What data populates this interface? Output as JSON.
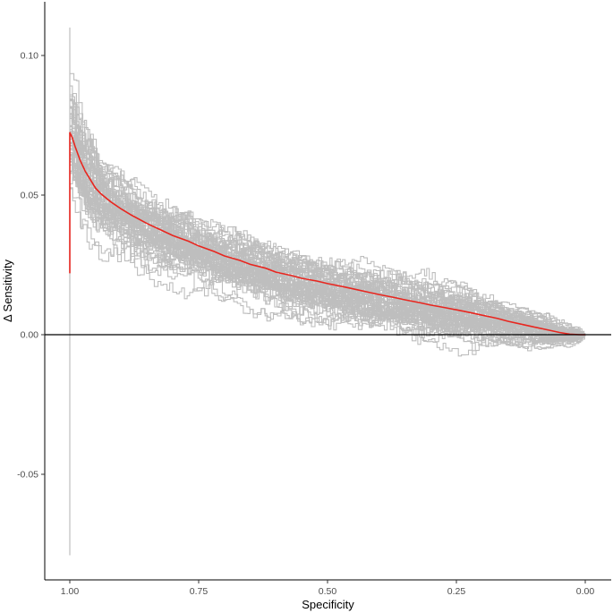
{
  "chart_data": {
    "type": "line",
    "title": "",
    "xlabel": "Specificity",
    "ylabel": "Δ Sensitivity",
    "x_reversed": true,
    "xlim": [
      0.0,
      1.0
    ],
    "ylim": [
      -0.085,
      0.118
    ],
    "x_ticks": [
      {
        "value": 1.0,
        "label": "1.00"
      },
      {
        "value": 0.75,
        "label": "0.75"
      },
      {
        "value": 0.5,
        "label": "0.50"
      },
      {
        "value": 0.25,
        "label": "0.25"
      },
      {
        "value": 0.0,
        "label": "0.00"
      }
    ],
    "y_ticks": [
      {
        "value": 0.1,
        "label": "0.10"
      },
      {
        "value": 0.05,
        "label": "0.05"
      },
      {
        "value": 0.0,
        "label": "0.00"
      },
      {
        "value": -0.05,
        "label": "-0.05"
      }
    ],
    "grid": false,
    "reference_line": {
      "y": 0.0,
      "color": "#000000"
    },
    "colors": {
      "mean": "#e8261f",
      "replicates": "#bebebe",
      "axis": "#000000"
    },
    "series": [
      {
        "role": "mean",
        "x": [
          1.0,
          1.0,
          0.995,
          0.99,
          0.98,
          0.97,
          0.96,
          0.95,
          0.94,
          0.92,
          0.9,
          0.88,
          0.85,
          0.82,
          0.8,
          0.77,
          0.75,
          0.72,
          0.7,
          0.67,
          0.65,
          0.62,
          0.6,
          0.57,
          0.55,
          0.52,
          0.5,
          0.47,
          0.45,
          0.42,
          0.4,
          0.37,
          0.35,
          0.32,
          0.3,
          0.27,
          0.25,
          0.22,
          0.2,
          0.17,
          0.15,
          0.12,
          0.1,
          0.07,
          0.05,
          0.03,
          0.01,
          0.0
        ],
        "y": [
          0.022,
          0.0725,
          0.0705,
          0.0675,
          0.0625,
          0.0585,
          0.0555,
          0.0525,
          0.0505,
          0.0475,
          0.045,
          0.0428,
          0.0398,
          0.0372,
          0.0355,
          0.0335,
          0.0318,
          0.0298,
          0.0282,
          0.0266,
          0.0252,
          0.0238,
          0.0224,
          0.0212,
          0.0202,
          0.0192,
          0.0183,
          0.0172,
          0.0164,
          0.0152,
          0.0144,
          0.0133,
          0.0125,
          0.0114,
          0.0106,
          0.0096,
          0.0089,
          0.0078,
          0.007,
          0.0058,
          0.0048,
          0.0036,
          0.0028,
          0.0016,
          0.0008,
          0.0002,
          0.0,
          0.0
        ]
      }
    ],
    "replicates": {
      "count": 60,
      "spike_at_x1": [
        -0.079,
        0.11
      ],
      "envelope_x": [
        1.0,
        0.9,
        0.75,
        0.5,
        0.4,
        0.25,
        0.1,
        0.0
      ],
      "envelope_upper": [
        0.094,
        0.068,
        0.058,
        0.04,
        0.035,
        0.03,
        0.012,
        0.003
      ],
      "envelope_lower": [
        0.035,
        0.025,
        0.017,
        0.005,
        0.0,
        -0.004,
        -0.008,
        -0.002
      ]
    }
  }
}
